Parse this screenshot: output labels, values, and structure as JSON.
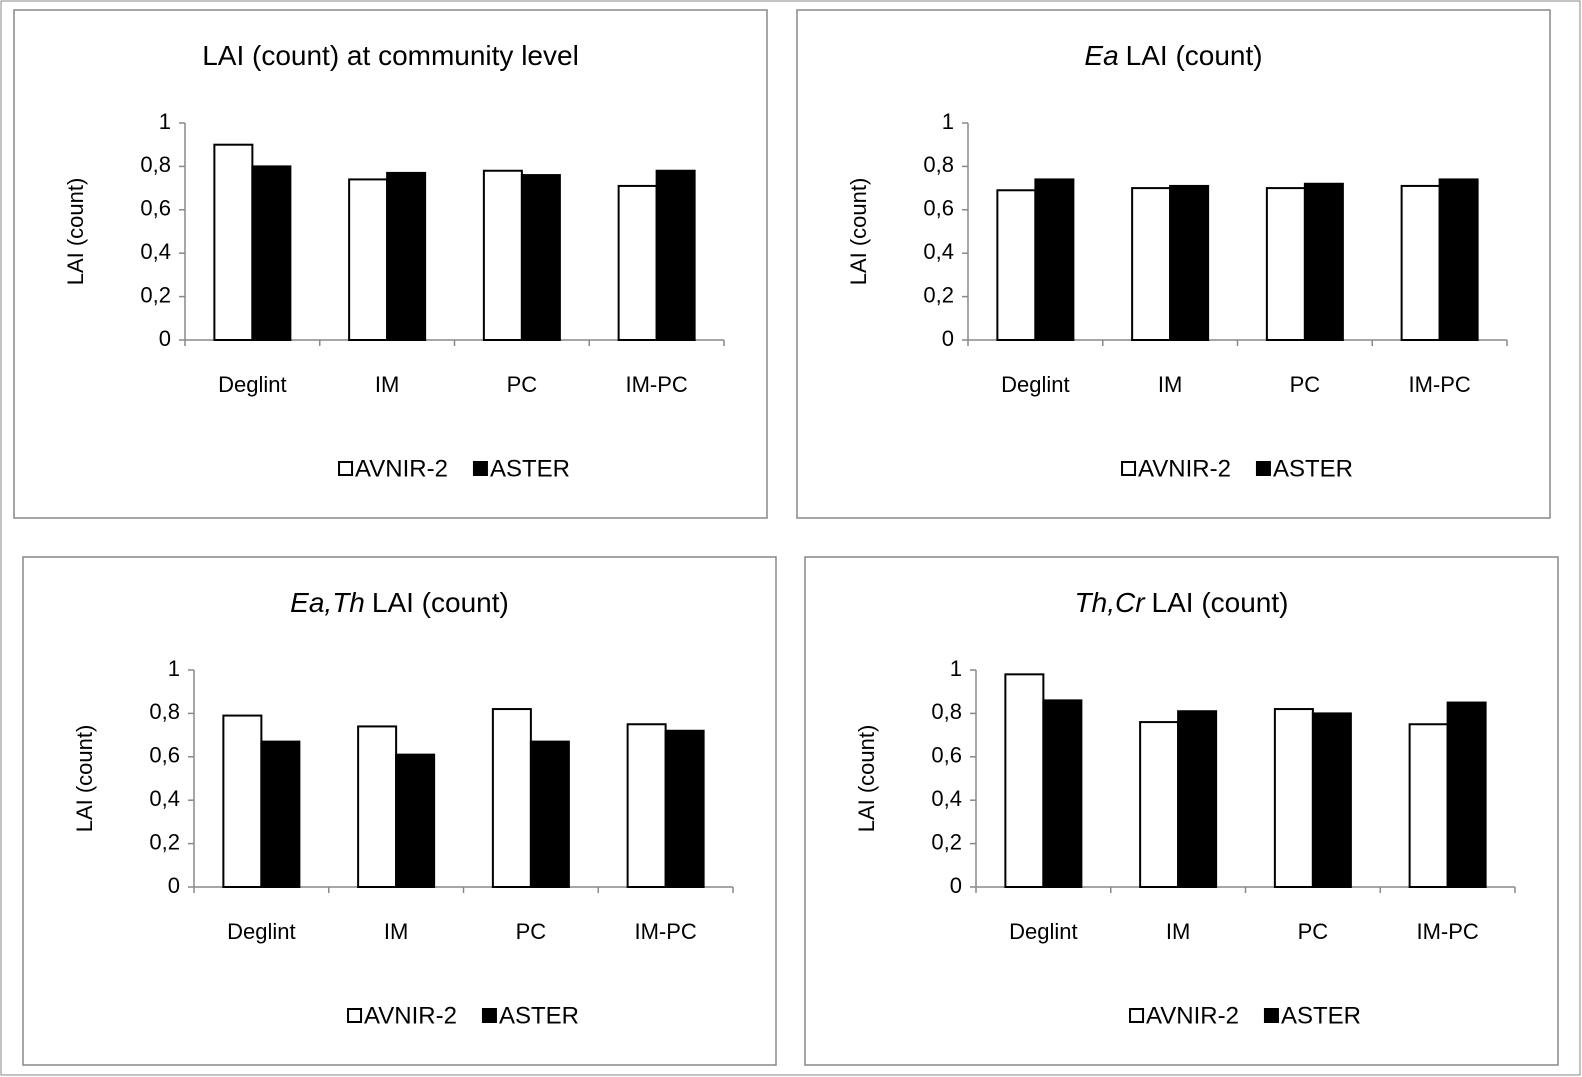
{
  "chart_data": [
    {
      "type": "bar",
      "title": "LAI (count) at community level",
      "y_label": "LAI (count)",
      "categories": [
        "Deglint",
        "IM",
        "PC",
        "IM-PC"
      ],
      "series": [
        {
          "name": "AVNIR-2",
          "color": "#ffffff",
          "values": [
            0.9,
            0.74,
            0.78,
            0.71
          ]
        },
        {
          "name": "ASTER",
          "color": "#000000",
          "values": [
            0.8,
            0.77,
            0.76,
            0.78
          ]
        }
      ],
      "ylim": [
        0,
        1
      ],
      "yticks": [
        0,
        {
          "value": 0.2,
          "label": "0,2"
        },
        {
          "value": 0.4,
          "label": "0,4"
        },
        {
          "value": 0.6,
          "label": "0,6"
        },
        {
          "value": 0.8,
          "label": "0,8"
        },
        1
      ]
    },
    {
      "type": "bar",
      "title_italic": "Ea",
      "title": "LAI (count)",
      "y_label": "LAI (count)",
      "categories": [
        "Deglint",
        "IM",
        "PC",
        "IM-PC"
      ],
      "series": [
        {
          "name": "AVNIR-2",
          "color": "#ffffff",
          "values": [
            0.69,
            0.7,
            0.7,
            0.71
          ]
        },
        {
          "name": "ASTER",
          "color": "#000000",
          "values": [
            0.74,
            0.71,
            0.72,
            0.74
          ]
        }
      ],
      "ylim": [
        0,
        1
      ],
      "yticks": [
        0,
        {
          "value": 0.2,
          "label": "0,2"
        },
        {
          "value": 0.4,
          "label": "0,4"
        },
        {
          "value": 0.6,
          "label": "0,6"
        },
        {
          "value": 0.8,
          "label": "0,8"
        },
        1
      ]
    },
    {
      "type": "bar",
      "title_italic": "Ea,Th",
      "title": "LAI (count)",
      "y_label": "LAI (count)",
      "categories": [
        "Deglint",
        "IM",
        "PC",
        "IM-PC"
      ],
      "series": [
        {
          "name": "AVNIR-2",
          "color": "#ffffff",
          "values": [
            0.79,
            0.74,
            0.82,
            0.75
          ]
        },
        {
          "name": "ASTER",
          "color": "#000000",
          "values": [
            0.67,
            0.61,
            0.67,
            0.72
          ]
        }
      ],
      "ylim": [
        0,
        1
      ],
      "yticks": [
        0,
        {
          "value": 0.2,
          "label": "0,2"
        },
        {
          "value": 0.4,
          "label": "0,4"
        },
        {
          "value": 0.6,
          "label": "0,6"
        },
        {
          "value": 0.8,
          "label": "0,8"
        },
        1
      ]
    },
    {
      "type": "bar",
      "title_italic": "Th,Cr",
      "title": "LAI (count)",
      "y_label": "LAI (count)",
      "categories": [
        "Deglint",
        "IM",
        "PC",
        "IM-PC"
      ],
      "series": [
        {
          "name": "AVNIR-2",
          "color": "#ffffff",
          "values": [
            0.98,
            0.76,
            0.82,
            0.75
          ]
        },
        {
          "name": "ASTER",
          "color": "#000000",
          "values": [
            0.86,
            0.81,
            0.8,
            0.85
          ]
        }
      ],
      "ylim": [
        0,
        1
      ],
      "yticks": [
        0,
        {
          "value": 0.2,
          "label": "0,2"
        },
        {
          "value": 0.4,
          "label": "0,4"
        },
        {
          "value": 0.6,
          "label": "0,6"
        },
        {
          "value": 0.8,
          "label": "0,8"
        },
        1
      ]
    }
  ]
}
